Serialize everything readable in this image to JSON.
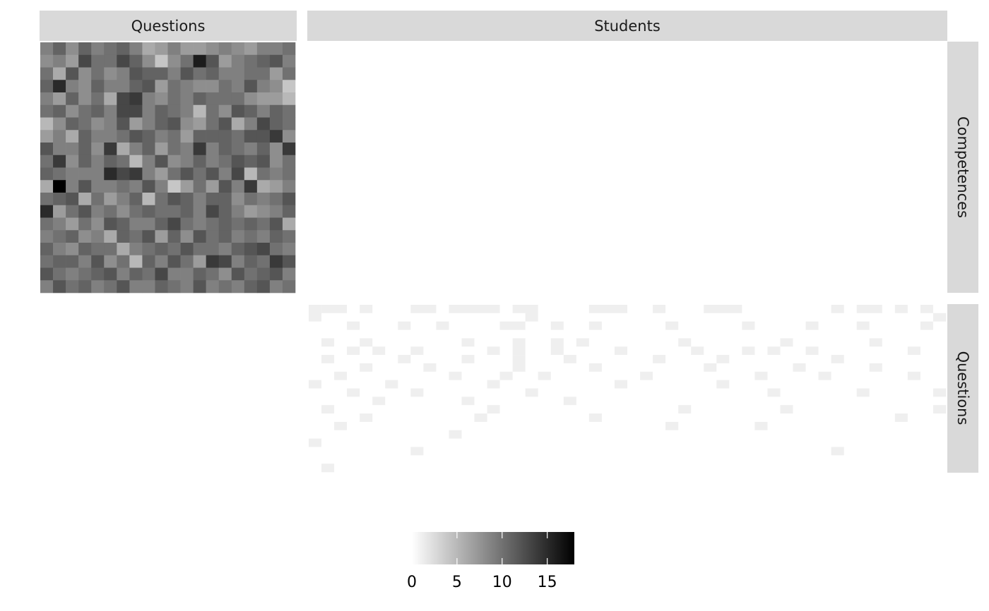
{
  "chart_data": {
    "type": "heatmap",
    "facet_columns": [
      "Questions",
      "Students"
    ],
    "facet_rows": [
      "Competences",
      "Questions"
    ],
    "colorscale": {
      "low": "#ffffff",
      "high": "#000000",
      "min": 0,
      "max": 18
    },
    "legend": {
      "position": "bottom",
      "ticks": [
        0,
        5,
        10,
        15
      ]
    },
    "panels": [
      {
        "column": "Questions",
        "row": "Competences",
        "n_cols": 20,
        "n_rows": 20,
        "values": [
          [
            9,
            11,
            8,
            11,
            9,
            10,
            11,
            9,
            6,
            7,
            9,
            7,
            7,
            8,
            9,
            8,
            7,
            9,
            9,
            10
          ],
          [
            8,
            9,
            7,
            13,
            10,
            10,
            13,
            11,
            8,
            4,
            8,
            10,
            16,
            12,
            7,
            9,
            10,
            11,
            12,
            9
          ],
          [
            10,
            6,
            12,
            8,
            10,
            8,
            9,
            12,
            11,
            11,
            9,
            12,
            10,
            11,
            9,
            9,
            10,
            10,
            7,
            10
          ],
          [
            11,
            15,
            9,
            8,
            11,
            9,
            9,
            11,
            12,
            7,
            10,
            9,
            8,
            8,
            10,
            9,
            12,
            9,
            8,
            4
          ],
          [
            9,
            7,
            11,
            8,
            10,
            6,
            13,
            14,
            9,
            8,
            10,
            9,
            11,
            10,
            10,
            10,
            8,
            7,
            7,
            5
          ],
          [
            10,
            11,
            8,
            10,
            11,
            9,
            13,
            13,
            9,
            11,
            10,
            9,
            5,
            10,
            8,
            12,
            11,
            9,
            11,
            10
          ],
          [
            5,
            8,
            11,
            10,
            8,
            9,
            12,
            7,
            9,
            11,
            12,
            8,
            7,
            10,
            12,
            6,
            9,
            13,
            11,
            10
          ],
          [
            7,
            9,
            6,
            11,
            9,
            9,
            10,
            12,
            11,
            9,
            10,
            7,
            11,
            11,
            11,
            10,
            12,
            12,
            14,
            8
          ],
          [
            12,
            9,
            9,
            11,
            8,
            14,
            6,
            9,
            11,
            7,
            10,
            9,
            14,
            9,
            11,
            10,
            9,
            11,
            8,
            14
          ],
          [
            10,
            14,
            8,
            11,
            9,
            11,
            10,
            5,
            9,
            12,
            8,
            9,
            11,
            9,
            10,
            12,
            11,
            12,
            8,
            10
          ],
          [
            11,
            10,
            9,
            9,
            9,
            15,
            13,
            14,
            9,
            7,
            10,
            12,
            10,
            12,
            9,
            13,
            5,
            10,
            9,
            10
          ],
          [
            6,
            18,
            9,
            12,
            9,
            9,
            10,
            9,
            12,
            9,
            4,
            7,
            10,
            7,
            12,
            9,
            14,
            6,
            7,
            9
          ],
          [
            10,
            11,
            12,
            6,
            10,
            7,
            9,
            11,
            5,
            10,
            12,
            11,
            9,
            11,
            11,
            8,
            10,
            9,
            10,
            12
          ],
          [
            15,
            7,
            10,
            12,
            9,
            10,
            8,
            10,
            11,
            10,
            10,
            11,
            9,
            13,
            11,
            9,
            7,
            8,
            9,
            11
          ],
          [
            10,
            9,
            7,
            10,
            8,
            12,
            11,
            9,
            9,
            11,
            13,
            10,
            9,
            10,
            11,
            10,
            11,
            10,
            12,
            6
          ],
          [
            9,
            10,
            11,
            8,
            9,
            6,
            11,
            10,
            12,
            7,
            11,
            8,
            12,
            10,
            11,
            9,
            10,
            9,
            11,
            10
          ],
          [
            11,
            9,
            8,
            11,
            10,
            10,
            6,
            9,
            10,
            11,
            10,
            12,
            10,
            10,
            9,
            11,
            12,
            13,
            10,
            9
          ],
          [
            10,
            11,
            11,
            9,
            12,
            8,
            10,
            5,
            11,
            9,
            12,
            10,
            7,
            14,
            13,
            9,
            11,
            10,
            14,
            12
          ],
          [
            12,
            10,
            9,
            10,
            11,
            12,
            9,
            11,
            10,
            13,
            9,
            9,
            11,
            10,
            8,
            12,
            10,
            11,
            12,
            9
          ],
          [
            9,
            12,
            10,
            11,
            9,
            10,
            12,
            9,
            9,
            11,
            10,
            9,
            12,
            9,
            10,
            9,
            11,
            12,
            9,
            10
          ]
        ]
      },
      {
        "column": "Students",
        "row": "Questions",
        "n_cols": 50,
        "n_rows": 20,
        "values_description_note": ""
      }
    ],
    "students_questions_values": [
      [
        0,
        0,
        0,
        1,
        0,
        1,
        1,
        1,
        0,
        0,
        1,
        0,
        0,
        0,
        0,
        1,
        0,
        0,
        1,
        1,
        1,
        1,
        0,
        0,
        0,
        1,
        1,
        0,
        1,
        1,
        1,
        0,
        0,
        0,
        1,
        1,
        1,
        1,
        1,
        1,
        1,
        0,
        1,
        0,
        0,
        1,
        0,
        1,
        0,
        1
      ],
      [
        0,
        1,
        1,
        1,
        1,
        1,
        1,
        1,
        1,
        1,
        1,
        1,
        1,
        1,
        1,
        1,
        1,
        0,
        1,
        1,
        1,
        1,
        1,
        1,
        1,
        1,
        1,
        1,
        1,
        1,
        1,
        1,
        1,
        1,
        1,
        1,
        1,
        1,
        1,
        1,
        1,
        1,
        1,
        1,
        1,
        1,
        1,
        1,
        1,
        0
      ],
      [
        1,
        1,
        1,
        0,
        1,
        1,
        1,
        0,
        1,
        1,
        0,
        1,
        1,
        1,
        1,
        0,
        0,
        1,
        1,
        0,
        1,
        1,
        0,
        1,
        1,
        1,
        1,
        1,
        0,
        1,
        1,
        1,
        1,
        1,
        0,
        1,
        1,
        1,
        1,
        0,
        1,
        1,
        1,
        0,
        1,
        1,
        1,
        1,
        0,
        1
      ],
      [
        1,
        1,
        1,
        1,
        1,
        1,
        1,
        1,
        1,
        1,
        1,
        1,
        1,
        1,
        1,
        1,
        1,
        1,
        1,
        1,
        1,
        1,
        1,
        1,
        1,
        1,
        1,
        1,
        1,
        1,
        1,
        1,
        1,
        1,
        1,
        1,
        1,
        1,
        1,
        1,
        1,
        1,
        1,
        1,
        1,
        1,
        1,
        1,
        1,
        1
      ],
      [
        1,
        0,
        1,
        1,
        0,
        1,
        1,
        1,
        1,
        1,
        1,
        1,
        0,
        1,
        1,
        1,
        0,
        1,
        1,
        0,
        1,
        0,
        1,
        1,
        1,
        1,
        1,
        1,
        1,
        0,
        1,
        1,
        1,
        1,
        1,
        1,
        1,
        0,
        1,
        1,
        1,
        1,
        1,
        1,
        0,
        1,
        1,
        1,
        1,
        1
      ],
      [
        1,
        1,
        1,
        0,
        1,
        0,
        1,
        1,
        0,
        1,
        1,
        1,
        1,
        1,
        0,
        1,
        0,
        1,
        1,
        0,
        1,
        1,
        1,
        1,
        0,
        1,
        1,
        1,
        1,
        1,
        0,
        1,
        1,
        1,
        0,
        1,
        0,
        1,
        1,
        0,
        1,
        1,
        1,
        1,
        1,
        1,
        1,
        0,
        1,
        1
      ],
      [
        1,
        0,
        1,
        1,
        1,
        1,
        1,
        0,
        1,
        1,
        1,
        1,
        0,
        1,
        1,
        1,
        0,
        1,
        1,
        1,
        0,
        1,
        1,
        1,
        1,
        1,
        1,
        0,
        1,
        1,
        1,
        1,
        0,
        1,
        1,
        1,
        1,
        1,
        1,
        1,
        1,
        0,
        1,
        1,
        1,
        1,
        1,
        1,
        1,
        1
      ],
      [
        1,
        1,
        1,
        1,
        0,
        1,
        1,
        1,
        1,
        0,
        1,
        1,
        1,
        1,
        1,
        1,
        0,
        1,
        1,
        1,
        1,
        1,
        0,
        1,
        1,
        1,
        1,
        1,
        1,
        1,
        1,
        0,
        1,
        1,
        1,
        1,
        1,
        1,
        0,
        1,
        1,
        1,
        1,
        1,
        0,
        1,
        1,
        1,
        1,
        1
      ],
      [
        1,
        1,
        0,
        1,
        1,
        1,
        1,
        1,
        1,
        1,
        1,
        0,
        1,
        1,
        1,
        0,
        1,
        1,
        0,
        1,
        1,
        1,
        1,
        1,
        1,
        1,
        0,
        1,
        1,
        1,
        1,
        1,
        1,
        1,
        1,
        0,
        1,
        1,
        1,
        1,
        0,
        1,
        1,
        1,
        1,
        1,
        1,
        0,
        1,
        1
      ],
      [
        0,
        1,
        1,
        1,
        1,
        1,
        0,
        1,
        1,
        1,
        1,
        1,
        1,
        1,
        0,
        1,
        1,
        1,
        1,
        1,
        1,
        1,
        1,
        1,
        0,
        1,
        1,
        1,
        1,
        1,
        1,
        1,
        0,
        1,
        1,
        1,
        1,
        1,
        1,
        1,
        1,
        1,
        1,
        1,
        1,
        1,
        1,
        1,
        1,
        1
      ],
      [
        1,
        1,
        1,
        0,
        1,
        1,
        1,
        1,
        0,
        1,
        1,
        1,
        1,
        1,
        1,
        1,
        1,
        0,
        1,
        1,
        1,
        1,
        1,
        1,
        1,
        1,
        1,
        1,
        1,
        1,
        1,
        1,
        1,
        1,
        1,
        1,
        0,
        1,
        1,
        1,
        1,
        1,
        1,
        0,
        1,
        1,
        1,
        1,
        1,
        0
      ],
      [
        1,
        1,
        1,
        1,
        1,
        0,
        1,
        1,
        1,
        1,
        1,
        1,
        0,
        1,
        1,
        1,
        1,
        1,
        1,
        1,
        0,
        1,
        1,
        1,
        1,
        1,
        1,
        1,
        1,
        1,
        1,
        1,
        1,
        1,
        1,
        1,
        1,
        1,
        1,
        1,
        1,
        1,
        1,
        1,
        1,
        1,
        1,
        1,
        1,
        1
      ],
      [
        1,
        0,
        1,
        1,
        1,
        1,
        1,
        1,
        1,
        1,
        1,
        1,
        1,
        1,
        0,
        1,
        1,
        1,
        1,
        1,
        1,
        1,
        1,
        1,
        1,
        1,
        1,
        1,
        1,
        0,
        1,
        1,
        1,
        1,
        1,
        1,
        1,
        0,
        1,
        1,
        1,
        1,
        1,
        1,
        1,
        1,
        1,
        1,
        1,
        0
      ],
      [
        1,
        1,
        1,
        1,
        0,
        1,
        1,
        1,
        1,
        1,
        1,
        1,
        1,
        0,
        1,
        1,
        1,
        1,
        1,
        1,
        1,
        1,
        0,
        1,
        1,
        1,
        1,
        1,
        1,
        1,
        1,
        1,
        1,
        1,
        1,
        1,
        1,
        1,
        1,
        1,
        1,
        1,
        1,
        1,
        1,
        1,
        0,
        1,
        1,
        1
      ],
      [
        1,
        1,
        0,
        1,
        1,
        1,
        1,
        1,
        1,
        1,
        1,
        1,
        1,
        1,
        1,
        1,
        1,
        1,
        1,
        1,
        1,
        1,
        1,
        1,
        1,
        1,
        1,
        1,
        0,
        1,
        1,
        1,
        1,
        1,
        1,
        0,
        1,
        1,
        1,
        1,
        1,
        1,
        1,
        1,
        1,
        1,
        1,
        1,
        1,
        1
      ],
      [
        1,
        1,
        1,
        1,
        1,
        1,
        1,
        1,
        1,
        1,
        1,
        0,
        1,
        1,
        1,
        1,
        1,
        1,
        1,
        1,
        1,
        1,
        1,
        1,
        1,
        1,
        1,
        1,
        1,
        1,
        1,
        1,
        1,
        1,
        1,
        1,
        1,
        1,
        1,
        1,
        1,
        1,
        1,
        1,
        1,
        1,
        1,
        1,
        1,
        1
      ],
      [
        0,
        1,
        1,
        1,
        1,
        1,
        1,
        1,
        1,
        1,
        1,
        1,
        1,
        1,
        1,
        1,
        1,
        1,
        1,
        1,
        1,
        1,
        1,
        1,
        1,
        1,
        1,
        1,
        1,
        1,
        1,
        1,
        1,
        1,
        1,
        1,
        1,
        1,
        1,
        1,
        1,
        1,
        1,
        1,
        1,
        1,
        1,
        1,
        1,
        1
      ],
      [
        1,
        1,
        1,
        1,
        1,
        1,
        1,
        1,
        0,
        1,
        1,
        1,
        1,
        1,
        1,
        1,
        1,
        1,
        1,
        1,
        1,
        1,
        1,
        1,
        1,
        1,
        1,
        1,
        1,
        1,
        1,
        1,
        1,
        1,
        1,
        1,
        1,
        1,
        1,
        1,
        1,
        0,
        1,
        1,
        1,
        1,
        1,
        1,
        1,
        1
      ],
      [
        1,
        1,
        1,
        1,
        1,
        1,
        1,
        1,
        1,
        1,
        1,
        1,
        1,
        1,
        1,
        1,
        1,
        1,
        1,
        1,
        1,
        1,
        1,
        1,
        1,
        1,
        1,
        1,
        1,
        1,
        1,
        1,
        1,
        1,
        1,
        1,
        1,
        1,
        1,
        1,
        1,
        1,
        1,
        1,
        1,
        1,
        1,
        1,
        1,
        1
      ],
      [
        1,
        0,
        1,
        1,
        1,
        1,
        1,
        1,
        1,
        1,
        1,
        1,
        1,
        1,
        1,
        1,
        1,
        1,
        1,
        1,
        1,
        1,
        1,
        1,
        1,
        1,
        1,
        1,
        1,
        1,
        1,
        1,
        1,
        1,
        1,
        1,
        1,
        1,
        1,
        1,
        1,
        1,
        1,
        1,
        1,
        1,
        1,
        1,
        1,
        1
      ]
    ]
  }
}
